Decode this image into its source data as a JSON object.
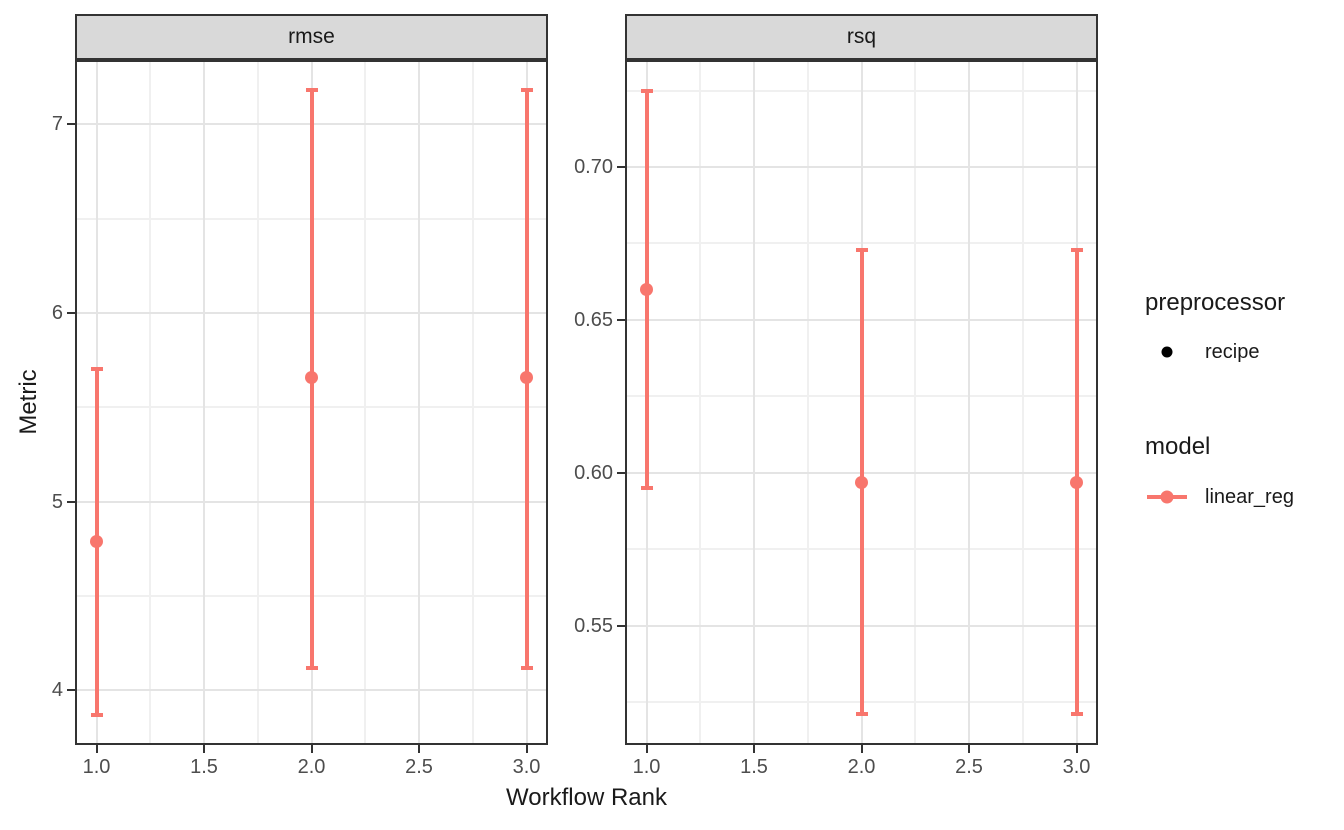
{
  "chart_data": {
    "type": "pointrange",
    "title": "",
    "xlabel": "Workflow Rank",
    "ylabel": "Metric",
    "xlim": [
      0.9,
      3.1
    ],
    "x_ticks": [
      1.0,
      1.5,
      2.0,
      2.5,
      3.0
    ],
    "x_tick_labels": [
      "1.0",
      "1.5",
      "2.0",
      "2.5",
      "3.0"
    ],
    "x_minor": [
      1.25,
      1.75,
      2.25,
      2.75
    ],
    "grid": "major and minor gridlines on white panel, black panel border",
    "point_color": "#F8766D",
    "facets": [
      {
        "name": "rmse",
        "ylim": [
          3.71,
          7.34
        ],
        "y_ticks": [
          4,
          5,
          6,
          7
        ],
        "y_tick_labels": [
          "4",
          "5",
          "6",
          "7"
        ],
        "y_minor": [
          4.5,
          5.5,
          6.5
        ],
        "series": [
          {
            "x": 1.0,
            "y": 4.79,
            "ymin": 3.87,
            "ymax": 5.7
          },
          {
            "x": 2.0,
            "y": 5.66,
            "ymin": 4.12,
            "ymax": 7.18
          },
          {
            "x": 3.0,
            "y": 5.66,
            "ymin": 4.12,
            "ymax": 7.18
          }
        ]
      },
      {
        "name": "rsq",
        "ylim": [
          0.511,
          0.735
        ],
        "y_ticks": [
          0.55,
          0.6,
          0.65,
          0.7
        ],
        "y_tick_labels": [
          "0.55",
          "0.60",
          "0.65",
          "0.70"
        ],
        "y_minor": [
          0.525,
          0.575,
          0.625,
          0.675,
          0.725
        ],
        "series": [
          {
            "x": 1.0,
            "y": 0.66,
            "ymin": 0.595,
            "ymax": 0.725
          },
          {
            "x": 2.0,
            "y": 0.597,
            "ymin": 0.521,
            "ymax": 0.673
          },
          {
            "x": 3.0,
            "y": 0.597,
            "ymin": 0.521,
            "ymax": 0.673
          }
        ]
      }
    ],
    "legend": {
      "groups": [
        {
          "title": "preprocessor",
          "items": [
            {
              "label": "recipe",
              "key": "point",
              "color": "#000000"
            }
          ]
        },
        {
          "title": "model",
          "items": [
            {
              "label": "linear_reg",
              "key": "line-point",
              "color": "#F8766D"
            }
          ]
        }
      ]
    },
    "colors": {
      "strip_fill": "#D9D9D9",
      "panel_border": "#333333",
      "grid_major": "#E4E4E4",
      "grid_minor": "#F0F0F0",
      "tick_label": "#4D4D4D",
      "text": "#1A1A1A",
      "background": "#FFFFFF"
    }
  }
}
